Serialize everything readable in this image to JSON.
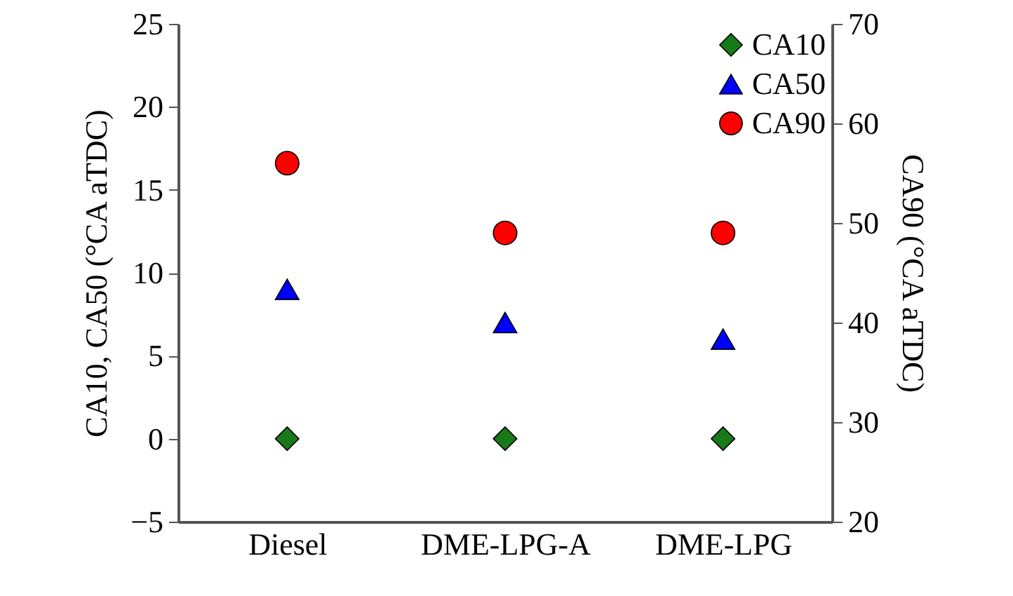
{
  "chart_data": {
    "type": "scatter",
    "categories": [
      "Diesel",
      "DME-LPG-A",
      "DME-LPG"
    ],
    "ylabel": "CA10, CA50 (°CA aTDC)",
    "y2label": "CA90 (°CA aTDC)",
    "ylim": [
      -5,
      25
    ],
    "yticks": [
      -5,
      0,
      5,
      10,
      15,
      20,
      25
    ],
    "y2lim": [
      20,
      70
    ],
    "y2ticks": [
      20,
      30,
      40,
      50,
      60,
      70
    ],
    "grid": false,
    "legend": "top right",
    "series": [
      {
        "name": "CA10",
        "color": "#177a17",
        "marker": "diamond",
        "values": [
          0,
          0,
          0
        ]
      },
      {
        "name": "CA50",
        "color": "#0000ff",
        "marker": "triangle",
        "values": [
          9,
          7,
          6
        ]
      },
      {
        "name": "CA90",
        "color": "#ff0000",
        "marker": "circle",
        "axis": "y2",
        "values": [
          56,
          49,
          49
        ]
      }
    ]
  }
}
